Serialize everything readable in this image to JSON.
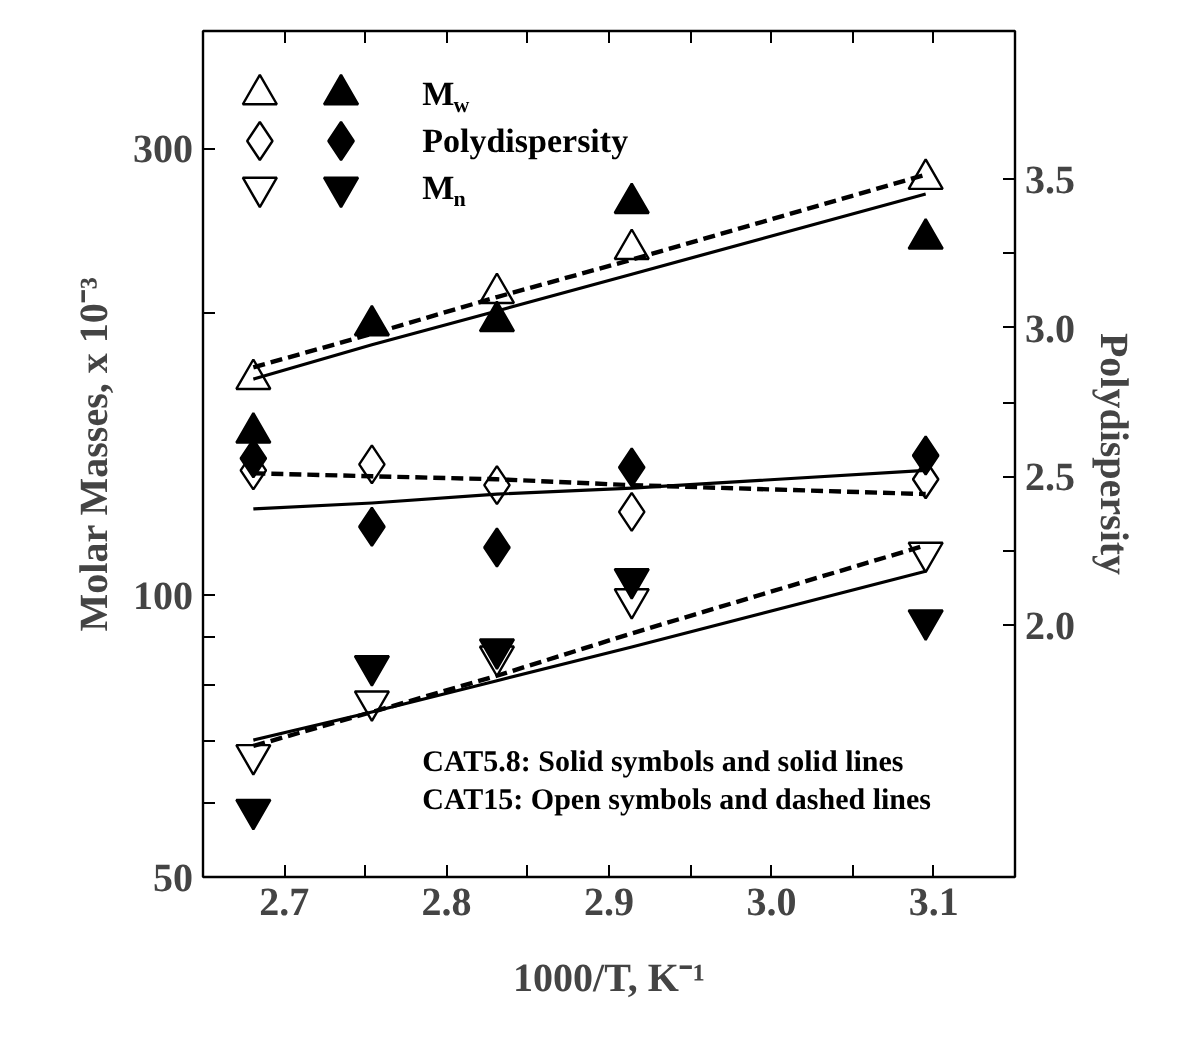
{
  "chart_data": {
    "type": "scatter",
    "xlabel": "1000/T, K⁻¹",
    "ylabel": "Molar Masses, x 10⁻³",
    "y2label": "Polydispersity",
    "log": "y",
    "grid": false,
    "legend": "top left",
    "xlim": [
      2.65,
      3.15
    ],
    "xticks": [
      2.7,
      {
        "value": 2.75,
        "label": null
      },
      2.8,
      {
        "value": 2.85,
        "label": null
      },
      2.9,
      {
        "value": 2.95,
        "label": null
      },
      {
        "value": 3.0,
        "label": "3.0"
      },
      {
        "value": 3.05,
        "label": null
      },
      3.1
    ],
    "ylim": [
      50,
      400
    ],
    "yticks": [
      50,
      {
        "value": 60,
        "label": null
      },
      {
        "value": 70,
        "label": null
      },
      {
        "value": 80,
        "label": null
      },
      {
        "value": 90,
        "label": null
      },
      100,
      {
        "value": 200,
        "label": null
      },
      300
    ],
    "y2lim": [
      1.15,
      4.0
    ],
    "y2ticks": [
      {
        "value": 2.0,
        "label": "2.0"
      },
      {
        "value": 2.25,
        "label": null
      },
      {
        "value": 2.5,
        "label": "2.5"
      },
      {
        "value": 2.75,
        "label": null
      },
      {
        "value": 3.0,
        "label": "3.0"
      },
      {
        "value": 3.25,
        "label": null
      },
      {
        "value": 3.5,
        "label": "3.5"
      }
    ],
    "x": [
      2.681,
      2.754,
      2.831,
      2.914,
      3.095
    ],
    "series": [
      {
        "color": "#ffffff",
        "marker": "triangle",
        "values": [
          170,
          null,
          210,
          234,
          278
        ]
      },
      {
        "name": "M$_{w}$",
        "color": "#000000",
        "marker": "triangle",
        "values": [
          149,
          194,
          196,
          262,
          240
        ]
      },
      {
        "color": "#ffffff",
        "marker": "diamond",
        "axis": "y2",
        "values": [
          2.52,
          2.54,
          2.47,
          2.38,
          2.49
        ]
      },
      {
        "name": "Polydispersity",
        "color": "#000000",
        "marker": "diamond",
        "axis": "y2",
        "values": [
          2.56,
          2.33,
          2.26,
          2.53,
          2.57
        ]
      },
      {
        "color": "#ffffff",
        "values": [
          67.5,
          77,
          86,
          99,
          111
        ]
      },
      {
        "name": "M$_{n}$",
        "color": "#000000",
        "values": [
          59,
          84,
          87.5,
          104,
          94
        ]
      },
      {
        "type": "line",
        "color": "#000000",
        "line_style": "solid",
        "values": [
          170,
          185,
          201,
          220,
          268
        ]
      },
      {
        "type": "line",
        "color": "#000000",
        "line_style": "dashed",
        "values": [
          175,
          190,
          208,
          228,
          281
        ]
      },
      {
        "type": "line",
        "color": "#000000",
        "line_style": "solid",
        "axis": "y2",
        "values": [
          2.39,
          2.41,
          2.44,
          2.46,
          2.52
        ]
      },
      {
        "type": "line",
        "color": "#000000",
        "line_style": "dashed",
        "axis": "y2",
        "values": [
          2.51,
          2.5,
          2.49,
          2.47,
          2.44
        ]
      },
      {
        "type": "line",
        "color": "#000000",
        "line_style": "solid",
        "values": [
          70,
          75,
          81,
          88,
          106
        ]
      },
      {
        "type": "line",
        "color": "#000000",
        "line_style": "dashed",
        "values": [
          69,
          75,
          82,
          91,
          113
        ]
      }
    ],
    "annotations": [
      "CAT5.8: Solid symbols and solid lines",
      "CAT15: Open symbols and dashed lines"
    ]
  }
}
